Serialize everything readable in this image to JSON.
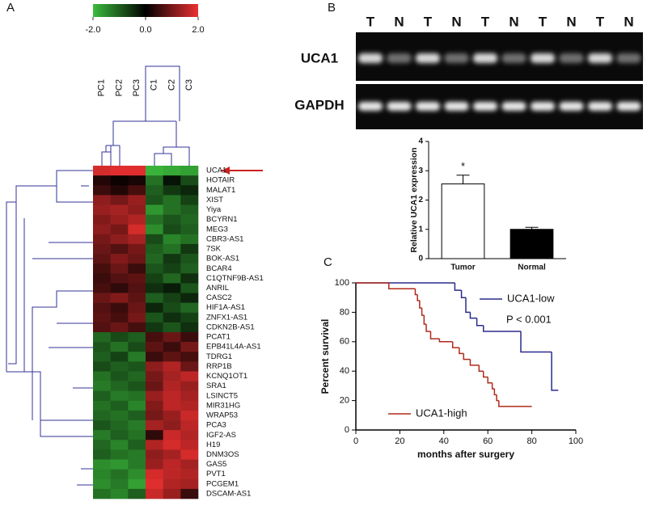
{
  "panels": [
    "A",
    "B",
    "C"
  ],
  "gel": {
    "lanes": [
      "T",
      "N",
      "T",
      "N",
      "T",
      "N",
      "T",
      "N",
      "T",
      "N"
    ],
    "rows": [
      "UCA1",
      "GAPDH"
    ]
  },
  "chart_data": [
    {
      "type": "heatmap",
      "columns": [
        "PC1",
        "PC2",
        "PC3",
        "C1",
        "C2",
        "C3"
      ],
      "rows": [
        "UCA1",
        "HOTAIR",
        "MALAT1",
        "XIST",
        "Yiya",
        "BCYRN1",
        "MEG3",
        "CBR3-AS1",
        "7SK",
        "BOK-AS1",
        "BCAR4",
        "C1QTNF9B-AS1",
        "ANRIL",
        "CASC2",
        "HIF1A-AS1",
        "ZNFX1-AS1",
        "CDKN2B-AS1",
        "PCAT1",
        "EPB41L4A-AS1",
        "TDRG1",
        "RRP1B",
        "KCNQ1OT1",
        "SRA1",
        "LSINCT5",
        "MIR31HG",
        "WRAP53",
        "PCA3",
        "IGF2-AS",
        "H19",
        "DNM3OS",
        "GAS5",
        "PVT1",
        "PCGEM1",
        "DSCAM-AS1"
      ],
      "values": [
        [
          1.8,
          1.9,
          1.9,
          -1.9,
          -1.8,
          -1.7
        ],
        [
          0.3,
          0.1,
          0.2,
          -1.2,
          -0.2,
          -0.8
        ],
        [
          0.5,
          0.3,
          0.6,
          -1.0,
          -0.6,
          -0.4
        ],
        [
          1.2,
          1.0,
          1.3,
          -0.9,
          -1.2,
          -0.7
        ],
        [
          1.3,
          1.4,
          1.2,
          -1.6,
          -1.2,
          -1.0
        ],
        [
          1.1,
          1.3,
          1.5,
          -1.2,
          -0.9,
          -1.1
        ],
        [
          1.2,
          1.0,
          1.8,
          -1.5,
          -0.8,
          -1.0
        ],
        [
          1.0,
          1.2,
          1.4,
          -0.8,
          -1.4,
          -1.2
        ],
        [
          0.9,
          0.7,
          1.0,
          -1.0,
          -1.2,
          -0.6
        ],
        [
          0.8,
          1.1,
          0.9,
          -1.1,
          -0.6,
          -0.9
        ],
        [
          0.6,
          0.9,
          0.5,
          -0.9,
          -0.7,
          -1.0
        ],
        [
          0.5,
          0.7,
          0.8,
          -0.7,
          -1.1,
          -0.5
        ],
        [
          0.6,
          0.4,
          0.7,
          -0.5,
          -0.3,
          -0.9
        ],
        [
          0.9,
          1.1,
          0.8,
          -1.0,
          -0.7,
          -0.4
        ],
        [
          0.7,
          0.5,
          0.9,
          -0.4,
          -0.8,
          -1.1
        ],
        [
          0.8,
          0.6,
          1.0,
          -0.9,
          -0.5,
          -0.7
        ],
        [
          0.7,
          0.9,
          0.6,
          -0.6,
          -0.9,
          -0.5
        ],
        [
          -1.1,
          -0.8,
          -1.0,
          0.6,
          0.9,
          0.5
        ],
        [
          -0.9,
          -1.2,
          -0.8,
          0.8,
          0.5,
          1.0
        ],
        [
          -1.0,
          -0.7,
          -1.3,
          0.5,
          0.8,
          0.6
        ],
        [
          -0.8,
          -1.0,
          -0.9,
          1.2,
          1.5,
          0.9
        ],
        [
          -1.2,
          -0.9,
          -1.1,
          1.0,
          1.4,
          1.6
        ],
        [
          -1.3,
          -1.1,
          -0.9,
          0.9,
          1.5,
          1.3
        ],
        [
          -1.0,
          -1.3,
          -1.2,
          1.3,
          1.6,
          1.4
        ],
        [
          -1.2,
          -1.0,
          -1.4,
          1.1,
          1.6,
          1.5
        ],
        [
          -1.1,
          -1.2,
          -1.0,
          1.0,
          1.3,
          1.7
        ],
        [
          -0.9,
          -1.1,
          -1.3,
          1.4,
          1.2,
          1.6
        ],
        [
          -1.3,
          -1.0,
          -1.2,
          0.4,
          1.7,
          1.5
        ],
        [
          -1.1,
          -1.4,
          -1.0,
          1.5,
          1.8,
          1.6
        ],
        [
          -1.0,
          -1.2,
          -1.3,
          1.2,
          1.4,
          1.8
        ],
        [
          -1.5,
          -1.6,
          -1.3,
          1.3,
          1.6,
          1.4
        ],
        [
          -1.4,
          -1.2,
          -1.5,
          1.8,
          1.6,
          1.5
        ],
        [
          -1.5,
          -1.3,
          -1.7,
          1.9,
          1.5,
          1.4
        ],
        [
          -1.2,
          -1.4,
          -1.0,
          1.7,
          1.3,
          0.5
        ]
      ],
      "zlim": [
        -2,
        2
      ],
      "zticks": [
        {
          "value": -2,
          "label": "-2.0"
        },
        {
          "value": 0,
          "label": "0.0"
        },
        {
          "value": 2,
          "label": "2.0"
        }
      ],
      "colors": [
        "#3cbc3c",
        "#000000",
        "#ec3030"
      ],
      "highlight_color": "#cc2222"
    },
    {
      "type": "bar",
      "ylabel": "Relative UCA1 expression",
      "categories": [
        "Tumor",
        "Normal"
      ],
      "values": [
        2.55,
        1.0
      ],
      "errors": [
        0.3,
        0.07
      ],
      "colors": [
        "#ffffff",
        "#000000"
      ],
      "annotations": [
        "*"
      ],
      "ylim": [
        0,
        4
      ],
      "yticks": [
        0,
        1,
        2,
        3,
        4
      ]
    },
    {
      "type": "step",
      "xlabel": "months after surgery",
      "ylabel": "Percent survival",
      "annotation": "P < 0.001",
      "series": [
        {
          "name": "UCA1-low",
          "color": "#2b2b8c",
          "x": [
            0,
            45,
            48,
            50,
            52,
            55,
            58,
            75,
            89,
            92
          ],
          "values": [
            100,
            95,
            90,
            80,
            76,
            71,
            67,
            53,
            27,
            27
          ]
        },
        {
          "name": "UCA1-high",
          "color": "#b02a1a",
          "x": [
            0,
            15,
            27,
            28,
            29,
            30,
            31,
            32,
            34,
            38,
            44,
            47,
            49,
            52,
            56,
            58,
            60,
            62,
            63,
            64,
            65,
            80
          ],
          "values": [
            100,
            96,
            92,
            88,
            83,
            78,
            72,
            67,
            62,
            60,
            56,
            52,
            48,
            44,
            40,
            36,
            32,
            28,
            24,
            20,
            16,
            16
          ]
        }
      ],
      "xlim": [
        0,
        100
      ],
      "xticks": [
        0,
        20,
        40,
        60,
        80,
        100
      ],
      "ylim": [
        0,
        100
      ],
      "yticks": [
        0,
        20,
        40,
        60,
        80,
        100
      ]
    }
  ]
}
